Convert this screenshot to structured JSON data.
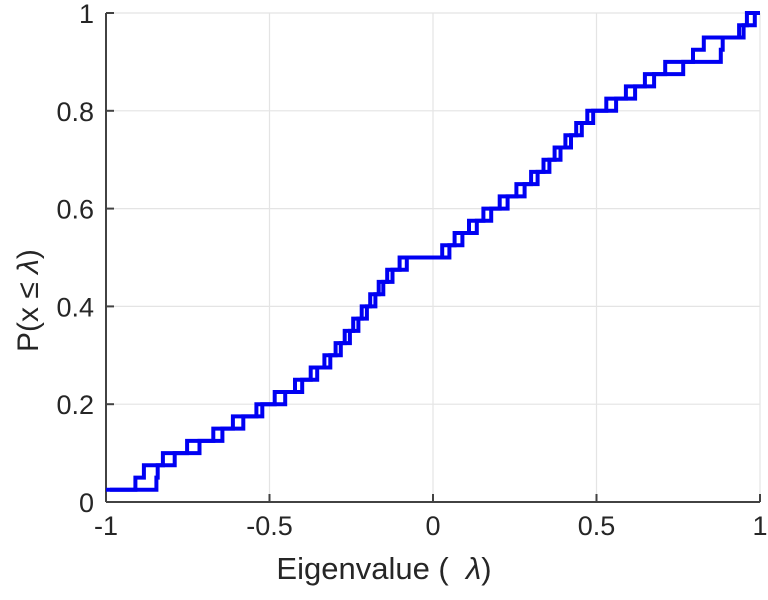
{
  "figure": {
    "background": "#ffffff",
    "xlabel_prefix": "Eigenvalue (  ",
    "xlabel_symbol": "λ",
    "xlabel_suffix": ")",
    "ylabel_prefix": "P(x ≤ ",
    "ylabel_symbol": "λ",
    "ylabel_suffix": ")"
  },
  "style": {
    "axis_color": "#424242",
    "grid_color": "#e4e4e4",
    "tick_label_color": "#262626",
    "line_color": "#0000f2",
    "line_width": 4,
    "tick_length": 8
  },
  "chart_data": {
    "type": "line",
    "subtype": "empirical-cdf-step",
    "title": "",
    "xlabel": "Eigenvalue ( λ)",
    "ylabel": "P(x ≤ λ)",
    "xlim": [
      -1,
      1
    ],
    "ylim": [
      0,
      1
    ],
    "x_ticks": [
      -1,
      -0.5,
      0,
      0.5,
      1
    ],
    "x_tick_labels": [
      "-1",
      "-0.5",
      "0",
      "0.5",
      "1"
    ],
    "y_ticks": [
      0,
      0.2,
      0.4,
      0.6,
      0.8,
      1
    ],
    "y_tick_labels": [
      "0",
      "0.2",
      "0.4",
      "0.6",
      "0.8",
      "1"
    ],
    "grid": true,
    "legend_position": "none",
    "step_height": 0.025,
    "series": [
      {
        "name": "ecdf-1",
        "color": "#0000f2",
        "eigenvalues": [
          -1.0,
          -0.91,
          -0.884,
          -0.826,
          -0.752,
          -0.672,
          -0.612,
          -0.54,
          -0.484,
          -0.422,
          -0.374,
          -0.332,
          -0.298,
          -0.27,
          -0.244,
          -0.218,
          -0.192,
          -0.166,
          -0.14,
          -0.102,
          0.028,
          0.066,
          0.11,
          0.154,
          0.204,
          0.255,
          0.3,
          0.338,
          0.372,
          0.405,
          0.438,
          0.472,
          0.53,
          0.59,
          0.648,
          0.71,
          0.795,
          0.828,
          0.936,
          0.96
        ]
      },
      {
        "name": "ecdf-2",
        "color": "#0000f2",
        "eigenvalues": [
          -0.988,
          -0.846,
          -0.842,
          -0.79,
          -0.714,
          -0.644,
          -0.58,
          -0.522,
          -0.452,
          -0.4,
          -0.354,
          -0.314,
          -0.282,
          -0.254,
          -0.228,
          -0.202,
          -0.176,
          -0.152,
          -0.124,
          -0.08,
          0.05,
          0.09,
          0.134,
          0.178,
          0.228,
          0.28,
          0.32,
          0.356,
          0.39,
          0.422,
          0.455,
          0.49,
          0.56,
          0.618,
          0.676,
          0.765,
          0.88,
          0.886,
          0.95,
          0.984
        ]
      }
    ]
  }
}
